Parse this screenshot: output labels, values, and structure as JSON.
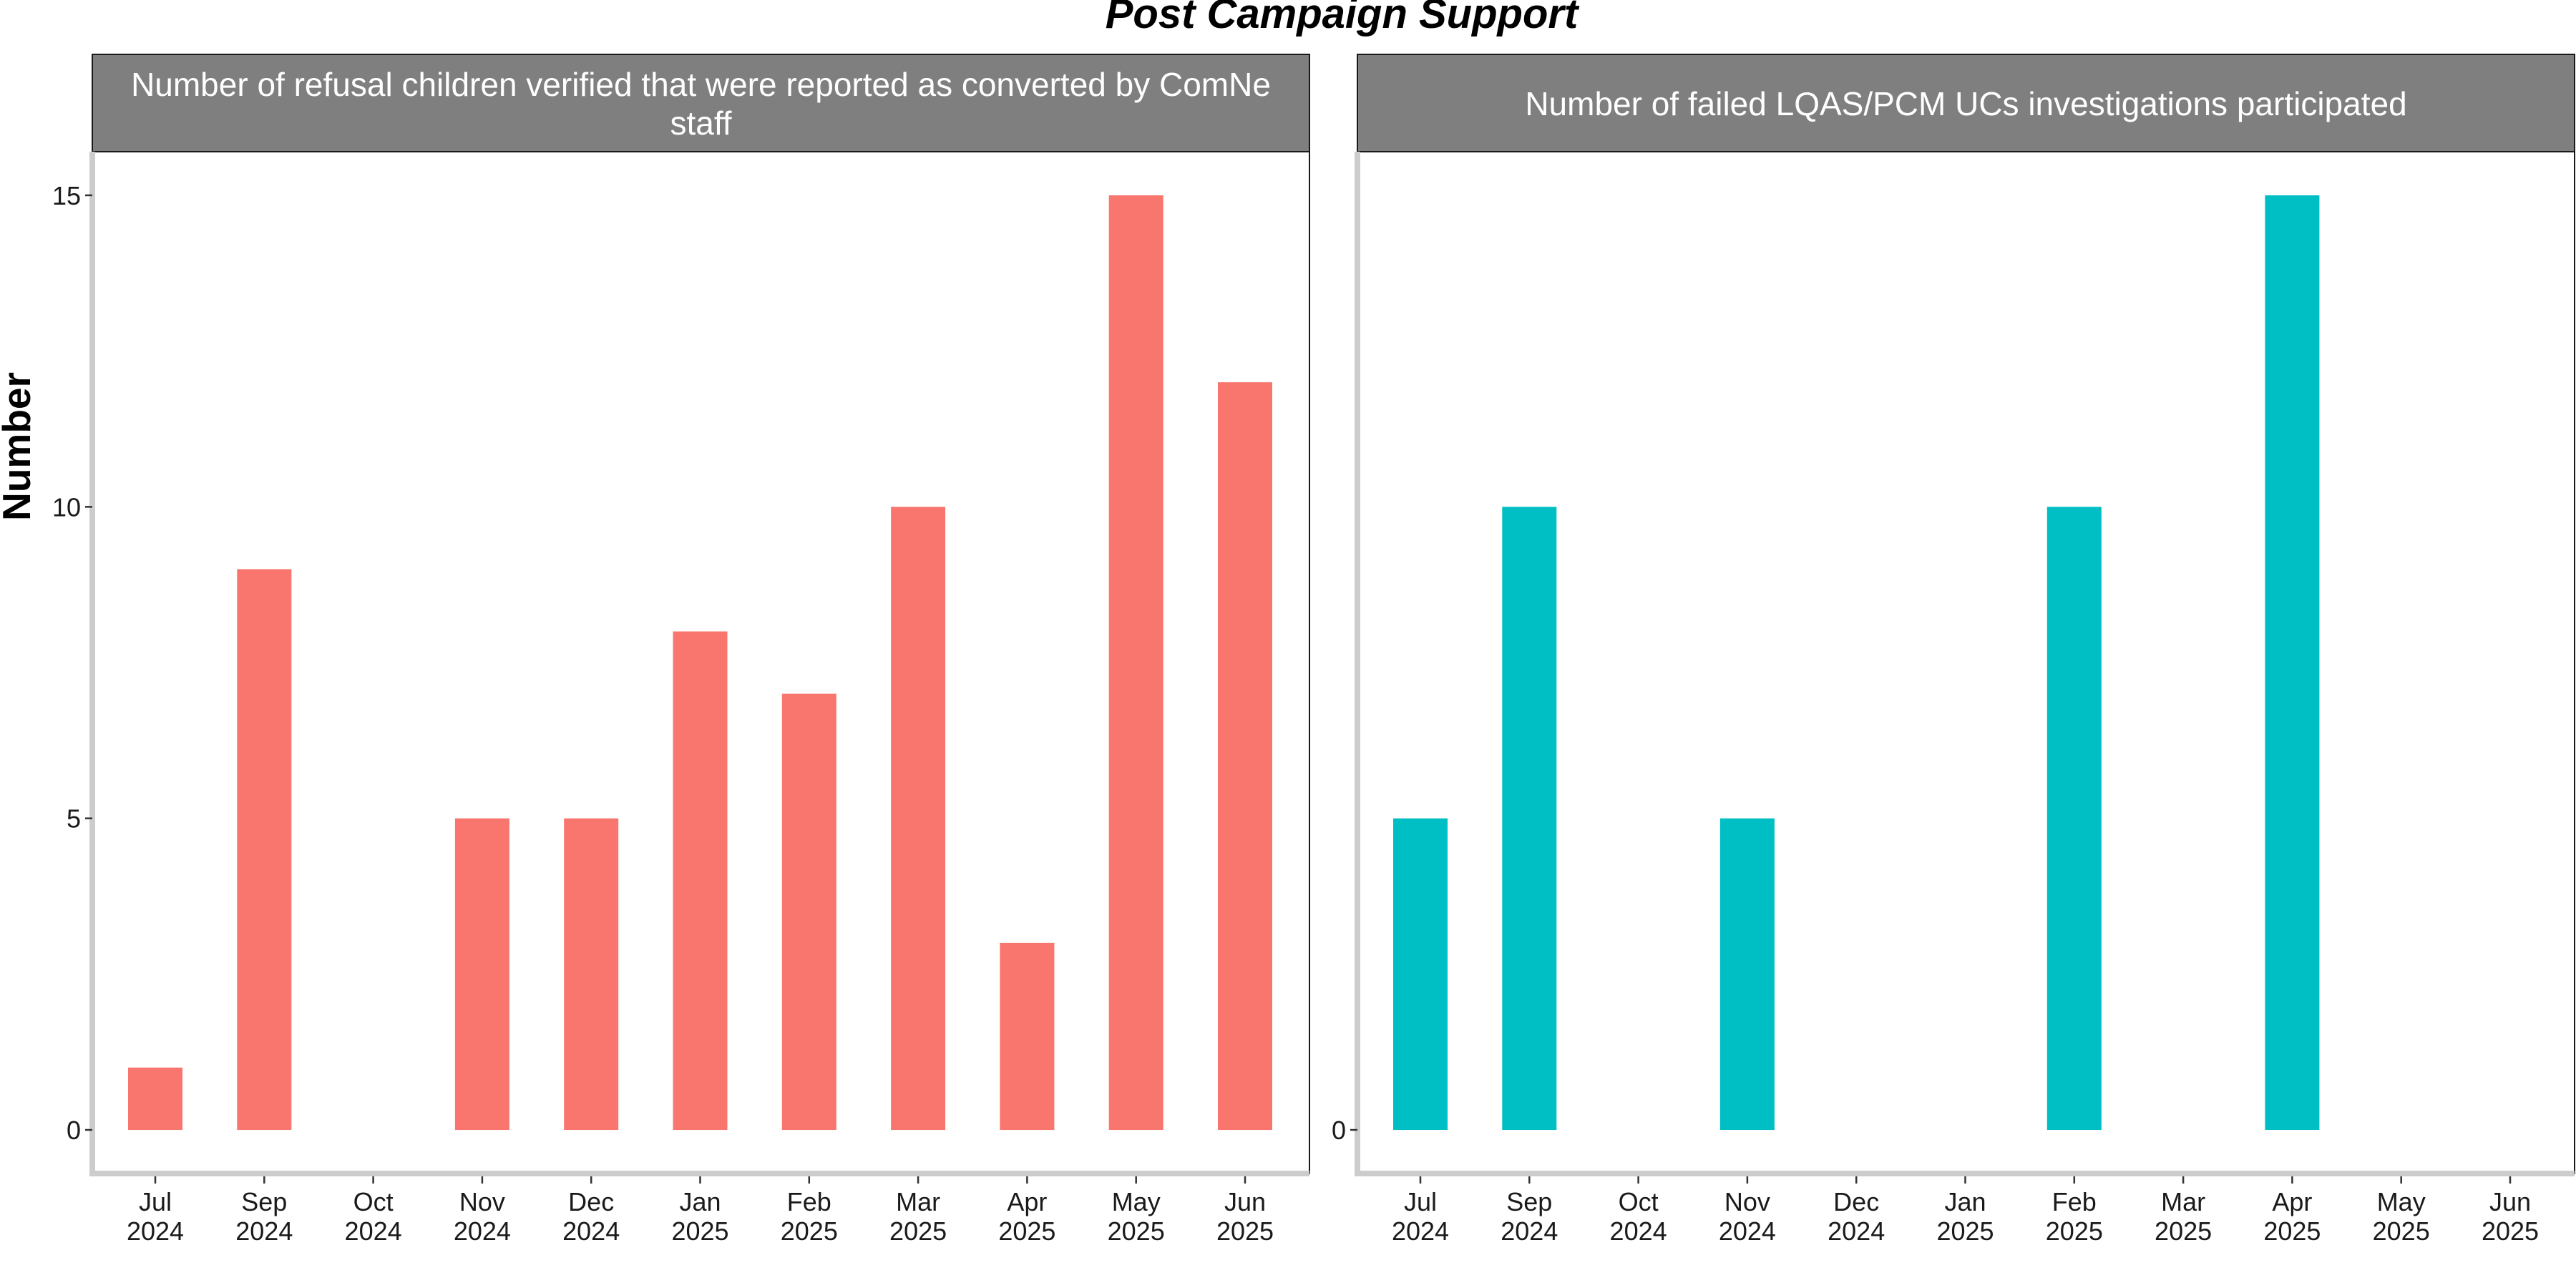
{
  "title": "Post Campaign Support",
  "ylabel": "Number",
  "chart_data": [
    {
      "type": "bar",
      "title": "Number of refusal children verified that were reported as converted by ComNet staff",
      "title_display_lines": [
        "Number of refusal children verified that were reported as converted by ComNe",
        "staff"
      ],
      "categories": [
        "Jul 2024",
        "Sep 2024",
        "Oct 2024",
        "Nov 2024",
        "Dec 2024",
        "Jan 2025",
        "Feb 2025",
        "Mar 2025",
        "Apr 2025",
        "May 2025",
        "Jun 2025"
      ],
      "tick_labels": [
        [
          "Jul",
          "2024"
        ],
        [
          "Sep",
          "2024"
        ],
        [
          "Oct",
          "2024"
        ],
        [
          "Nov",
          "2024"
        ],
        [
          "Dec",
          "2024"
        ],
        [
          "Jan",
          "2025"
        ],
        [
          "Feb",
          "2025"
        ],
        [
          "Mar",
          "2025"
        ],
        [
          "Apr",
          "2025"
        ],
        [
          "May",
          "2025"
        ],
        [
          "Jun",
          "2025"
        ]
      ],
      "values": [
        1,
        9,
        null,
        5,
        5,
        8,
        7,
        10,
        3,
        15,
        12
      ],
      "ylim": [
        -0.7,
        15.7
      ],
      "yticks": [
        0,
        5,
        10,
        15
      ],
      "ytick_labels": [
        "0",
        "5",
        "10",
        "15"
      ],
      "color": "#F8766D",
      "grid": false
    },
    {
      "type": "bar",
      "title": "Number of failed LQAS/PCM UCs investigations participated",
      "title_display_lines": [
        "Number of failed LQAS/PCM UCs investigations participated"
      ],
      "categories": [
        "Jul 2024",
        "Sep 2024",
        "Oct 2024",
        "Nov 2024",
        "Dec 2024",
        "Jan 2025",
        "Feb 2025",
        "Mar 2025",
        "Apr 2025",
        "May 2025",
        "Jun 2025"
      ],
      "tick_labels": [
        [
          "Jul",
          "2024"
        ],
        [
          "Sep",
          "2024"
        ],
        [
          "Oct",
          "2024"
        ],
        [
          "Nov",
          "2024"
        ],
        [
          "Dec",
          "2024"
        ],
        [
          "Jan",
          "2025"
        ],
        [
          "Feb",
          "2025"
        ],
        [
          "Mar",
          "2025"
        ],
        [
          "Apr",
          "2025"
        ],
        [
          "May",
          "2025"
        ],
        [
          "Jun",
          "2025"
        ]
      ],
      "values": [
        5,
        10,
        null,
        5,
        null,
        null,
        10,
        null,
        15,
        null,
        null
      ],
      "ylim": [
        -0.7,
        15.7
      ],
      "yticks": [
        0
      ],
      "ytick_labels": [
        "0"
      ],
      "color": "#00BFC4",
      "grid": false
    }
  ]
}
